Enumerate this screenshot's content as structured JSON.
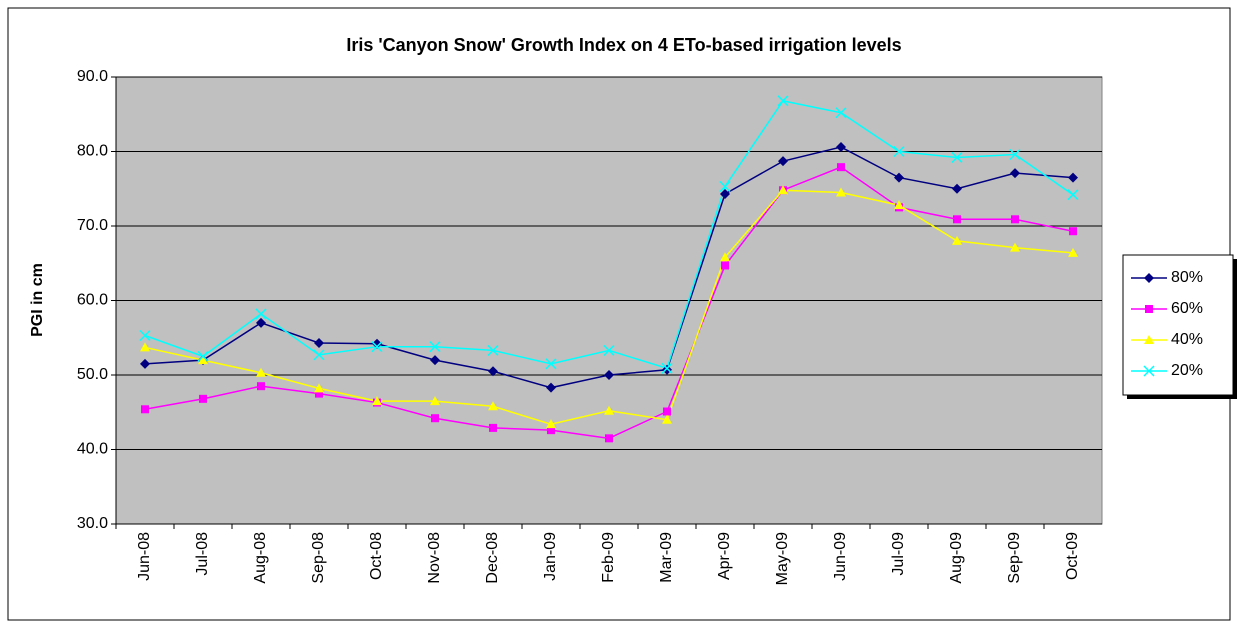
{
  "chart_data": {
    "type": "line",
    "title": "Iris 'Canyon Snow' Growth Index on 4 ETo-based irrigation levels",
    "y_label": "PGI in cm",
    "categories": [
      "Jun-08",
      "Jul-08",
      "Aug-08",
      "Sep-08",
      "Oct-08",
      "Nov-08",
      "Dec-08",
      "Jan-09",
      "Feb-09",
      "Mar-09",
      "Apr-09",
      "May-09",
      "Jun-09",
      "Jul-09",
      "Aug-09",
      "Sep-09",
      "Oct-09"
    ],
    "series": [
      {
        "name": "80%",
        "color": "#000080",
        "marker": "diamond",
        "values": [
          51.5,
          52,
          57,
          54.3,
          54.2,
          52,
          50.5,
          48.3,
          50,
          50.7,
          74.3,
          78.7,
          80.6,
          76.5,
          75,
          77.1,
          76.5
        ]
      },
      {
        "name": "60%",
        "color": "#ff00ff",
        "marker": "square",
        "values": [
          45.4,
          46.8,
          48.5,
          47.5,
          46.3,
          44.2,
          42.9,
          42.6,
          41.5,
          45.1,
          64.7,
          74.8,
          77.9,
          72.5,
          70.9,
          70.9,
          69.3
        ]
      },
      {
        "name": "40%",
        "color": "#ffff00",
        "marker": "triangle",
        "values": [
          53.7,
          52,
          50.3,
          48.2,
          46.5,
          46.5,
          45.8,
          43.4,
          45.2,
          44,
          65.8,
          74.8,
          74.5,
          72.8,
          68,
          67.1,
          66.4
        ]
      },
      {
        "name": "20%",
        "color": "#00ffff",
        "marker": "cross",
        "values": [
          55.3,
          52.5,
          58.2,
          52.7,
          53.8,
          53.8,
          53.3,
          51.5,
          53.3,
          50.9,
          75.3,
          86.8,
          85.2,
          80,
          79.2,
          79.6,
          74.2
        ]
      }
    ],
    "ylim": [
      30,
      90
    ],
    "yticks": [
      {
        "value": 30,
        "label": "30.0"
      },
      {
        "value": 40,
        "label": "40.0"
      },
      {
        "value": 50,
        "label": "50.0"
      },
      {
        "value": 60,
        "label": "60.0"
      },
      {
        "value": 70,
        "label": "70.0"
      },
      {
        "value": 80,
        "label": "80.0"
      },
      {
        "value": 90,
        "label": "90.0"
      }
    ],
    "grid": true,
    "legend": "right",
    "plot_background": "#c0c0c0"
  }
}
